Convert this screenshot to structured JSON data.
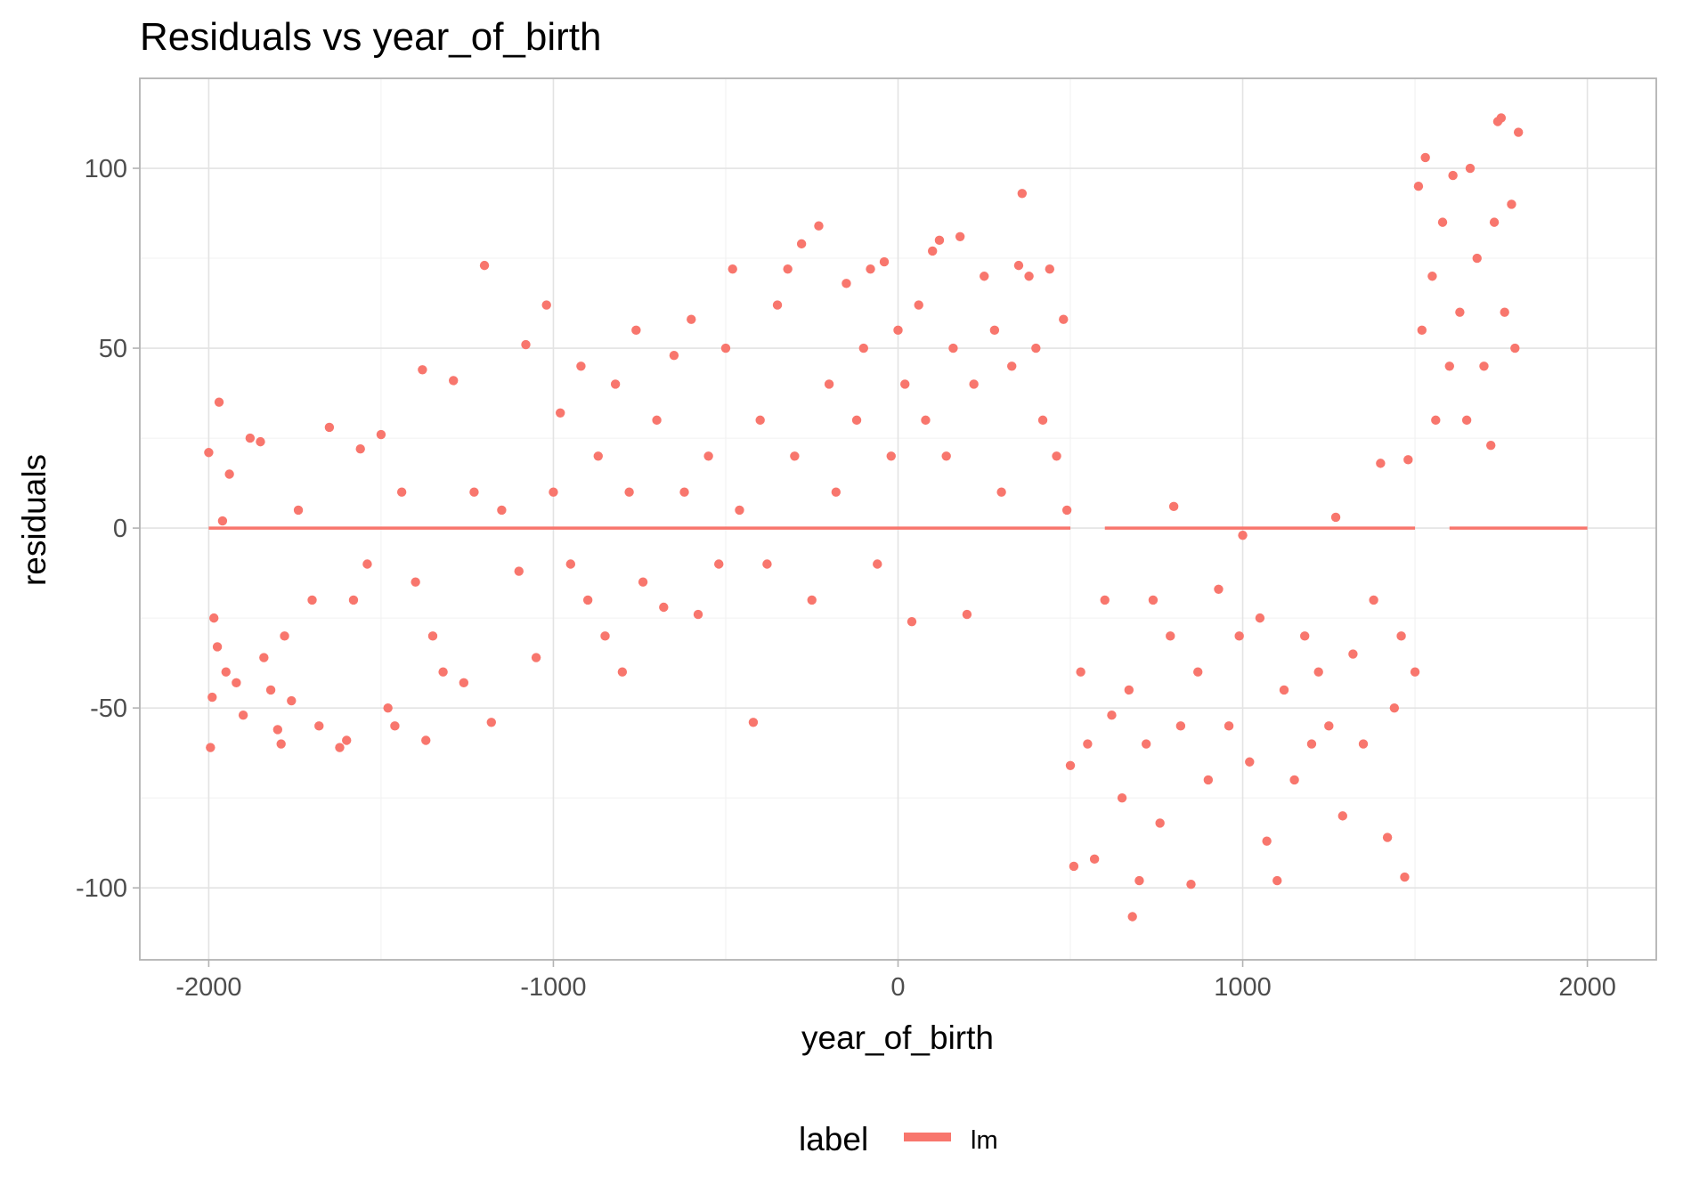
{
  "chart_data": {
    "type": "scatter",
    "title": "Residuals vs year_of_birth",
    "xlabel": "year_of_birth",
    "ylabel": "residuals",
    "xlim": [
      -2200,
      2200
    ],
    "ylim": [
      -120,
      125
    ],
    "x_ticks": [
      -2000,
      -1000,
      0,
      1000,
      2000
    ],
    "x_tick_labels": [
      "-2000",
      "-1000",
      "0",
      "1000",
      "2000"
    ],
    "y_ticks": [
      -100,
      -50,
      0,
      50,
      100
    ],
    "y_tick_labels": [
      "-100",
      "-50",
      "0",
      "50",
      "100"
    ],
    "grid": true,
    "point_color": "#F8766D",
    "legend": {
      "title": "label",
      "position": "bottom",
      "entries": [
        {
          "label": "lm",
          "color": "#F8766D"
        }
      ]
    },
    "reference_lines": [
      {
        "name": "lm",
        "x": [
          -2000,
          500
        ],
        "y": [
          0,
          0
        ]
      },
      {
        "name": "lm",
        "x": [
          600,
          1500
        ],
        "y": [
          0,
          0
        ]
      },
      {
        "name": "lm",
        "x": [
          1600,
          2000
        ],
        "y": [
          0,
          0
        ]
      }
    ],
    "series": [
      {
        "name": "residuals",
        "points": [
          [
            -2000,
            21
          ],
          [
            -1995,
            -61
          ],
          [
            -1990,
            -47
          ],
          [
            -1985,
            -25
          ],
          [
            -1970,
            35
          ],
          [
            -1975,
            -33
          ],
          [
            -1960,
            2
          ],
          [
            -1950,
            -40
          ],
          [
            -1940,
            15
          ],
          [
            -1920,
            -43
          ],
          [
            -1900,
            -52
          ],
          [
            -1880,
            25
          ],
          [
            -1850,
            24
          ],
          [
            -1840,
            -36
          ],
          [
            -1820,
            -45
          ],
          [
            -1800,
            -56
          ],
          [
            -1790,
            -60
          ],
          [
            -1780,
            -30
          ],
          [
            -1760,
            -48
          ],
          [
            -1740,
            5
          ],
          [
            -1700,
            -20
          ],
          [
            -1680,
            -55
          ],
          [
            -1650,
            28
          ],
          [
            -1620,
            -61
          ],
          [
            -1600,
            -59
          ],
          [
            -1580,
            -20
          ],
          [
            -1560,
            22
          ],
          [
            -1540,
            -10
          ],
          [
            -1500,
            26
          ],
          [
            -1480,
            -50
          ],
          [
            -1460,
            -55
          ],
          [
            -1440,
            10
          ],
          [
            -1400,
            -15
          ],
          [
            -1380,
            44
          ],
          [
            -1370,
            -59
          ],
          [
            -1350,
            -30
          ],
          [
            -1320,
            -40
          ],
          [
            -1290,
            41
          ],
          [
            -1260,
            -43
          ],
          [
            -1230,
            10
          ],
          [
            -1200,
            73
          ],
          [
            -1180,
            -54
          ],
          [
            -1150,
            5
          ],
          [
            -1100,
            -12
          ],
          [
            -1080,
            51
          ],
          [
            -1050,
            -36
          ],
          [
            -1020,
            62
          ],
          [
            -1000,
            10
          ],
          [
            -980,
            32
          ],
          [
            -950,
            -10
          ],
          [
            -920,
            45
          ],
          [
            -900,
            -20
          ],
          [
            -870,
            20
          ],
          [
            -850,
            -30
          ],
          [
            -820,
            40
          ],
          [
            -800,
            -40
          ],
          [
            -780,
            10
          ],
          [
            -760,
            55
          ],
          [
            -740,
            -15
          ],
          [
            -700,
            30
          ],
          [
            -680,
            -22
          ],
          [
            -650,
            48
          ],
          [
            -620,
            10
          ],
          [
            -600,
            58
          ],
          [
            -580,
            -24
          ],
          [
            -550,
            20
          ],
          [
            -520,
            -10
          ],
          [
            -500,
            50
          ],
          [
            -480,
            72
          ],
          [
            -460,
            5
          ],
          [
            -420,
            -54
          ],
          [
            -400,
            30
          ],
          [
            -380,
            -10
          ],
          [
            -350,
            62
          ],
          [
            -320,
            72
          ],
          [
            -300,
            20
          ],
          [
            -280,
            79
          ],
          [
            -250,
            -20
          ],
          [
            -230,
            84
          ],
          [
            -200,
            40
          ],
          [
            -180,
            10
          ],
          [
            -150,
            68
          ],
          [
            -120,
            30
          ],
          [
            -100,
            50
          ],
          [
            -80,
            72
          ],
          [
            -60,
            -10
          ],
          [
            -40,
            74
          ],
          [
            -20,
            20
          ],
          [
            0,
            55
          ],
          [
            20,
            40
          ],
          [
            40,
            -26
          ],
          [
            60,
            62
          ],
          [
            80,
            30
          ],
          [
            100,
            77
          ],
          [
            120,
            80
          ],
          [
            140,
            20
          ],
          [
            160,
            50
          ],
          [
            180,
            81
          ],
          [
            200,
            -24
          ],
          [
            220,
            40
          ],
          [
            250,
            70
          ],
          [
            280,
            55
          ],
          [
            300,
            10
          ],
          [
            330,
            45
          ],
          [
            350,
            73
          ],
          [
            360,
            93
          ],
          [
            380,
            70
          ],
          [
            400,
            50
          ],
          [
            420,
            30
          ],
          [
            440,
            72
          ],
          [
            460,
            20
          ],
          [
            480,
            58
          ],
          [
            490,
            5
          ],
          [
            500,
            -66
          ],
          [
            510,
            -94
          ],
          [
            530,
            -40
          ],
          [
            550,
            -60
          ],
          [
            570,
            -92
          ],
          [
            600,
            -20
          ],
          [
            620,
            -52
          ],
          [
            650,
            -75
          ],
          [
            670,
            -45
          ],
          [
            680,
            -108
          ],
          [
            700,
            -98
          ],
          [
            720,
            -60
          ],
          [
            740,
            -20
          ],
          [
            760,
            -82
          ],
          [
            790,
            -30
          ],
          [
            800,
            6
          ],
          [
            820,
            -55
          ],
          [
            850,
            -99
          ],
          [
            870,
            -40
          ],
          [
            900,
            -70
          ],
          [
            930,
            -17
          ],
          [
            960,
            -55
          ],
          [
            990,
            -30
          ],
          [
            1000,
            -2
          ],
          [
            1020,
            -65
          ],
          [
            1050,
            -25
          ],
          [
            1070,
            -87
          ],
          [
            1100,
            -98
          ],
          [
            1120,
            -45
          ],
          [
            1150,
            -70
          ],
          [
            1180,
            -30
          ],
          [
            1200,
            -60
          ],
          [
            1220,
            -40
          ],
          [
            1250,
            -55
          ],
          [
            1270,
            3
          ],
          [
            1290,
            -80
          ],
          [
            1320,
            -35
          ],
          [
            1350,
            -60
          ],
          [
            1380,
            -20
          ],
          [
            1400,
            18
          ],
          [
            1420,
            -86
          ],
          [
            1440,
            -50
          ],
          [
            1460,
            -30
          ],
          [
            1470,
            -97
          ],
          [
            1480,
            19
          ],
          [
            1500,
            -40
          ],
          [
            1510,
            95
          ],
          [
            1520,
            55
          ],
          [
            1530,
            103
          ],
          [
            1550,
            70
          ],
          [
            1560,
            30
          ],
          [
            1580,
            85
          ],
          [
            1600,
            45
          ],
          [
            1610,
            98
          ],
          [
            1630,
            60
          ],
          [
            1650,
            30
          ],
          [
            1660,
            100
          ],
          [
            1680,
            75
          ],
          [
            1700,
            45
          ],
          [
            1720,
            23
          ],
          [
            1730,
            85
          ],
          [
            1740,
            113
          ],
          [
            1750,
            114
          ],
          [
            1760,
            60
          ],
          [
            1780,
            90
          ],
          [
            1790,
            50
          ],
          [
            1800,
            110
          ]
        ]
      }
    ]
  }
}
